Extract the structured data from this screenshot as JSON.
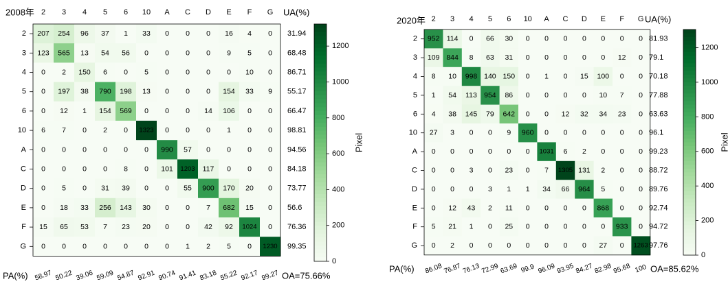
{
  "chart_data": [
    {
      "type": "heatmap",
      "title": "2008年",
      "categories": [
        "2",
        "3",
        "4",
        "5",
        "6",
        "10",
        "A",
        "C",
        "D",
        "E",
        "F",
        "G"
      ],
      "matrix": [
        [
          207,
          254,
          96,
          37,
          1,
          33,
          0,
          0,
          0,
          16,
          4,
          0
        ],
        [
          123,
          565,
          13,
          54,
          56,
          0,
          0,
          0,
          0,
          9,
          5,
          0
        ],
        [
          0,
          2,
          150,
          6,
          0,
          5,
          0,
          0,
          0,
          0,
          10,
          0
        ],
        [
          0,
          197,
          38,
          790,
          198,
          13,
          0,
          0,
          0,
          154,
          33,
          9
        ],
        [
          0,
          12,
          1,
          154,
          569,
          0,
          0,
          0,
          14,
          106,
          0,
          0
        ],
        [
          6,
          7,
          0,
          2,
          0,
          1323,
          0,
          0,
          0,
          1,
          0,
          0
        ],
        [
          0,
          0,
          0,
          0,
          0,
          0,
          990,
          57,
          0,
          0,
          0,
          0
        ],
        [
          0,
          0,
          0,
          0,
          8,
          0,
          101,
          1203,
          117,
          0,
          0,
          0
        ],
        [
          0,
          5,
          0,
          31,
          39,
          0,
          0,
          55,
          900,
          170,
          20,
          0
        ],
        [
          0,
          18,
          33,
          256,
          143,
          30,
          0,
          0,
          7,
          682,
          15,
          0
        ],
        [
          15,
          65,
          53,
          7,
          23,
          20,
          0,
          0,
          42,
          92,
          1024,
          0
        ],
        [
          0,
          0,
          0,
          0,
          0,
          0,
          0,
          1,
          2,
          5,
          0,
          1230
        ]
      ],
      "ua_header": "UA(%)",
      "ua": [
        "31.94",
        "68.48",
        "86.71",
        "55.17",
        "66.47",
        "98.81",
        "94.56",
        "84.18",
        "73.77",
        "56.6",
        "76.36",
        "99.35"
      ],
      "pa_header": "PA(%)",
      "pa": [
        "58.97",
        "50.22",
        "39.06",
        "59.09",
        "54.87",
        "92.91",
        "90.74",
        "91.41",
        "83.18",
        "55.22",
        "92.17",
        "99.27"
      ],
      "oa": "OA=75.66%",
      "colorbar": {
        "label": "Pixel",
        "range": [
          0,
          1323
        ],
        "ticks": [
          "0",
          "200",
          "400",
          "600",
          "800",
          "1000",
          "1200"
        ]
      }
    },
    {
      "type": "heatmap",
      "title": "2020年",
      "categories": [
        "2",
        "3",
        "4",
        "5",
        "6",
        "10",
        "A",
        "C",
        "D",
        "E",
        "F",
        "G"
      ],
      "matrix": [
        [
          952,
          114,
          0,
          66,
          30,
          0,
          0,
          0,
          0,
          0,
          0,
          0
        ],
        [
          109,
          844,
          8,
          63,
          31,
          0,
          0,
          0,
          0,
          0,
          12,
          0
        ],
        [
          8,
          10,
          998,
          140,
          150,
          0,
          1,
          0,
          15,
          100,
          0,
          0
        ],
        [
          1,
          54,
          113,
          954,
          86,
          0,
          0,
          0,
          0,
          10,
          7,
          0
        ],
        [
          4,
          38,
          145,
          79,
          642,
          0,
          0,
          12,
          32,
          34,
          23,
          0
        ],
        [
          27,
          3,
          0,
          0,
          9,
          960,
          0,
          0,
          0,
          0,
          0,
          0
        ],
        [
          0,
          0,
          0,
          0,
          0,
          0,
          1031,
          6,
          2,
          0,
          0,
          0
        ],
        [
          0,
          0,
          3,
          0,
          23,
          0,
          7,
          1305,
          131,
          2,
          0,
          0
        ],
        [
          0,
          0,
          0,
          3,
          1,
          1,
          34,
          66,
          964,
          5,
          0,
          0
        ],
        [
          0,
          12,
          43,
          2,
          11,
          0,
          0,
          0,
          0,
          868,
          0,
          0
        ],
        [
          5,
          21,
          1,
          0,
          25,
          0,
          0,
          0,
          0,
          0,
          933,
          0
        ],
        [
          0,
          2,
          0,
          0,
          0,
          0,
          0,
          0,
          0,
          27,
          0,
          1263
        ]
      ],
      "ua_header": "UA(%)",
      "ua": [
        "81.93",
        "79.1",
        "70.18",
        "77.88",
        "63.63",
        "96.1",
        "99.23",
        "88.72",
        "89.76",
        "92.74",
        "94.72",
        "97.76"
      ],
      "pa_header": "PA(%)",
      "pa": [
        "86.08",
        "76.87",
        "76.13",
        "72.99",
        "63.69",
        "99.9",
        "96.09",
        "93.95",
        "84.27",
        "82.98",
        "95.68",
        "100"
      ],
      "oa": "OA=85.62%",
      "colorbar": {
        "label": "Pixel",
        "range": [
          0,
          1305
        ],
        "ticks": [
          "0",
          "200",
          "400",
          "600",
          "800",
          "1000",
          "1200"
        ]
      }
    }
  ],
  "colors": {
    "low": "#f7fcf5",
    "mid": "#74c476",
    "high": "#00441b",
    "text_dark": "#000000",
    "text_light": "#ffffff"
  }
}
